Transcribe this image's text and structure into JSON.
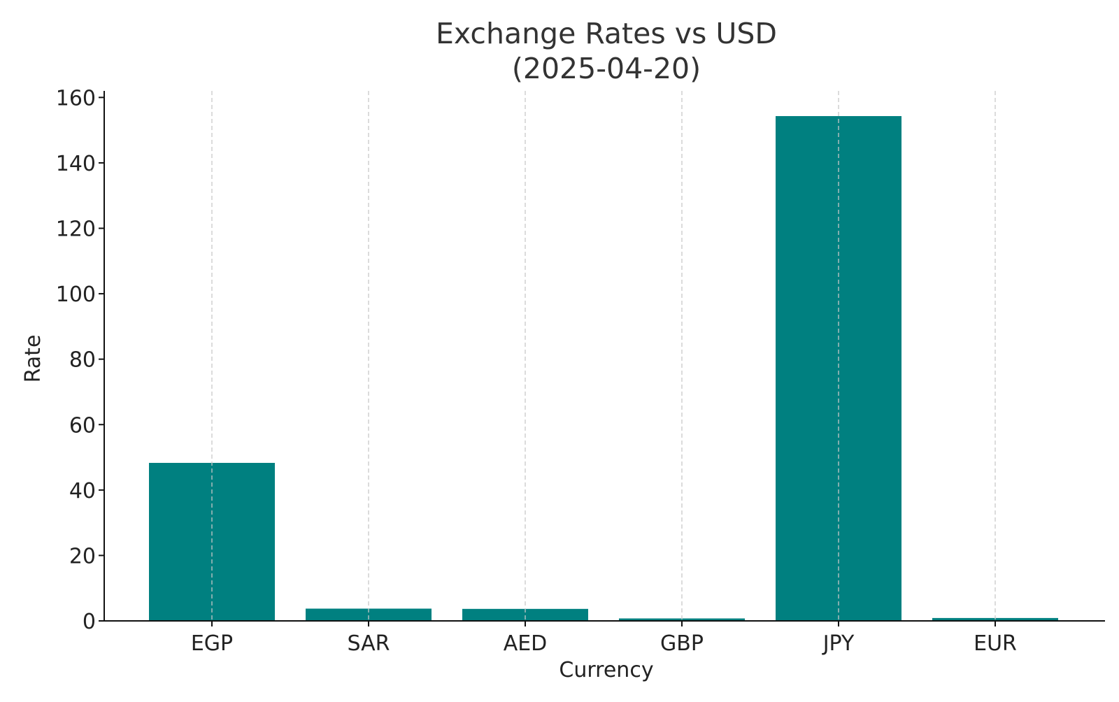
{
  "chart_data": {
    "type": "bar",
    "title": [
      "Exchange Rates vs USD",
      "(2025-04-20)"
    ],
    "xlabel": "Currency",
    "ylabel": "Rate",
    "categories": [
      "EGP",
      "SAR",
      "AED",
      "GBP",
      "JPY",
      "EUR"
    ],
    "values": [
      48.3,
      3.75,
      3.67,
      0.75,
      154.3,
      0.88
    ],
    "ylim": [
      0,
      162
    ],
    "yticks": [
      0,
      20,
      40,
      60,
      80,
      100,
      120,
      140,
      160
    ],
    "grid": "vertical dashed at categories",
    "colors": {
      "bar": "#008080",
      "axis": "#111111",
      "grid": "#c8c8c8"
    }
  }
}
